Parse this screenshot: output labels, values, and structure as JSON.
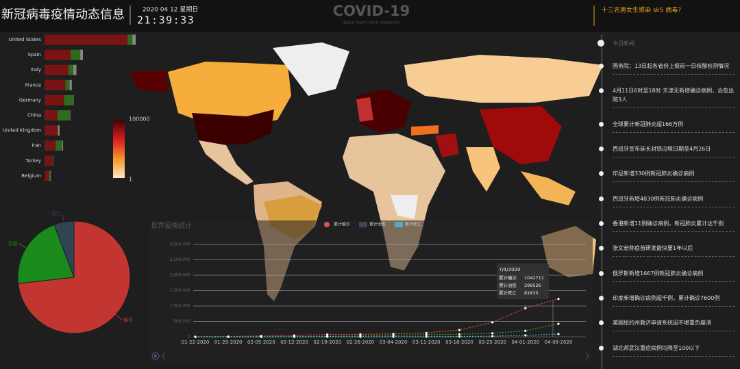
{
  "header": {
    "title": "新冠病毒疫情动态信息",
    "date": "2020 04 12 星期日",
    "time": "21:39:33",
    "brand": "COVID-19",
    "source": "data from John Hopkins",
    "headline": "十三名男女生感染 sk5 病毒？"
  },
  "map": {
    "legend_max": 100000,
    "legend_min": 1
  },
  "news": {
    "heading": "今日新闻",
    "items": [
      "国务院：13日起各省份上报前一日核酸检测情况",
      "4月11日6时至18时 天津无新增确诊病例，治愈出院3人",
      "全球累计新冠肺炎超166万例",
      "西班牙宣布延长封锁边境日期至4月26日",
      "印尼新增330例新冠肺炎确诊病例",
      "西班牙新增4830例新冠肺炎确诊病例",
      "香港新增11例确诊病例，新冠肺炎累计达千例",
      "张文宏称疫苗研发最快要1年以后",
      "俄罗斯新增1667例新冠肺炎确诊病例",
      "印度新增确诊病例超千例，累计确诊7600例",
      "美国纽约州救济申请系统因不堪重负崩溃",
      "湖北邦武汉重症病例均降至100以下"
    ]
  },
  "chart_data": [
    {
      "type": "bar",
      "orientation": "horizontal",
      "stacked": true,
      "categories": [
        "United States",
        "Spain",
        "Italy",
        "France",
        "Germany",
        "China",
        "United Kingdom",
        "Iran",
        "Turkey",
        "Belgium"
      ],
      "series": [
        {
          "name": "确诊",
          "color": "#7a1414",
          "values": [
            530000,
            166000,
            152000,
            133000,
            125000,
            83000,
            85000,
            71000,
            52000,
            29000
          ]
        },
        {
          "name": "治愈",
          "color": "#2e6b1e",
          "values": [
            31000,
            62000,
            32000,
            27000,
            58000,
            78000,
            500,
            43000,
            2900,
            6000
          ]
        },
        {
          "name": "死亡",
          "color": "#888888",
          "values": [
            20600,
            17000,
            19500,
            14000,
            2900,
            3300,
            10600,
            4400,
            1100,
            3300
          ]
        }
      ]
    },
    {
      "type": "pie",
      "categories": [
        "确诊",
        "治愈",
        "死亡"
      ],
      "values": [
        1042711,
        299526,
        81830
      ],
      "colors": [
        "#c23531",
        "#1a8a1a",
        "#2f4554"
      ]
    },
    {
      "type": "line",
      "title": "世界疫情统计",
      "categories": [
        "01-22-2020",
        "01-29-2020",
        "02-05-2020",
        "02-12-2020",
        "02-19-2020",
        "02-26-2020",
        "03-04-2020",
        "03-11-2020",
        "03-18-2020",
        "03-25-2020",
        "04-01-2020",
        "04-08-2020"
      ],
      "series": [
        {
          "name": "累计确诊",
          "color": "#e05050",
          "values": [
            555,
            7800,
            28000,
            45000,
            75000,
            81000,
            95000,
            126000,
            220000,
            470000,
            930000,
            1230000
          ]
        },
        {
          "name": "累计治愈",
          "color": "#3a9a3a",
          "values": [
            28,
            130,
            1100,
            5000,
            16000,
            30000,
            51000,
            68000,
            84000,
            115000,
            195000,
            420000
          ]
        },
        {
          "name": "累计死亡",
          "color": "#4ab0c8",
          "values": [
            17,
            170,
            560,
            1100,
            2100,
            2800,
            3300,
            4600,
            9000,
            22000,
            47000,
            90000
          ]
        }
      ],
      "ylim": [
        0,
        3000000
      ],
      "yticks": [
        0,
        {
          "value": 500000,
          "label": "500,000"
        },
        {
          "value": 1000000,
          "label": "1,000,000"
        },
        {
          "value": 1500000,
          "label": "1,500,000"
        },
        {
          "value": 2000000,
          "label": "2,000,000"
        },
        {
          "value": 2500000,
          "label": "2,500,000"
        },
        {
          "value": 3000000,
          "label": "3,000,000"
        }
      ],
      "grid": true,
      "tooltip": {
        "date": "7/4/2020",
        "values": [
          1042711,
          299526,
          81830
        ]
      }
    }
  ]
}
